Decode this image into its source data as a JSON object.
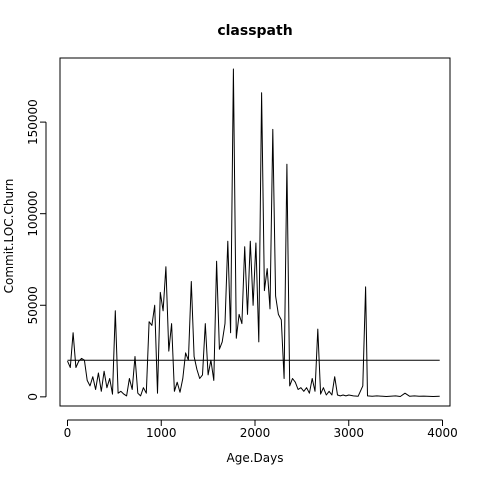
{
  "chart_data": {
    "type": "line",
    "title": "classpath",
    "xlabel": "Age.Days",
    "ylabel": "Commit.LOC.Churn",
    "xlim": [
      -80,
      4080
    ],
    "ylim": [
      -5000,
      185000
    ],
    "x_ticks": [
      0,
      1000,
      2000,
      3000,
      4000
    ],
    "x_tick_labels": [
      "0",
      "1000",
      "2000",
      "3000",
      "4000"
    ],
    "y_ticks": [
      0,
      50000,
      100000,
      150000
    ],
    "y_tick_labels": [
      "0",
      "50000",
      "100000",
      "150000"
    ],
    "grid": false,
    "series": [
      {
        "type": "line",
        "color": "#000000",
        "x": [
          0,
          30,
          60,
          90,
          120,
          150,
          180,
          210,
          240,
          270,
          300,
          330,
          360,
          390,
          420,
          450,
          480,
          510,
          540,
          570,
          600,
          630,
          660,
          690,
          720,
          750,
          780,
          810,
          840,
          870,
          900,
          930,
          960,
          990,
          1020,
          1050,
          1080,
          1110,
          1140,
          1170,
          1200,
          1230,
          1260,
          1290,
          1320,
          1350,
          1380,
          1410,
          1440,
          1470,
          1500,
          1530,
          1560,
          1590,
          1620,
          1650,
          1680,
          1710,
          1740,
          1770,
          1800,
          1830,
          1860,
          1890,
          1920,
          1950,
          1980,
          2010,
          2040,
          2070,
          2100,
          2130,
          2160,
          2190,
          2220,
          2250,
          2280,
          2310,
          2340,
          2370,
          2400,
          2430,
          2460,
          2490,
          2520,
          2550,
          2580,
          2610,
          2640,
          2670,
          2700,
          2730,
          2760,
          2790,
          2820,
          2850,
          2880,
          2910,
          2940,
          2970,
          3000,
          3050,
          3100,
          3150,
          3180,
          3200,
          3250,
          3300,
          3400,
          3500,
          3550,
          3600,
          3650,
          3700,
          3750,
          3800,
          3900,
          3970
        ],
        "y": [
          19500,
          16000,
          35000,
          16000,
          19500,
          21000,
          20000,
          9000,
          6000,
          11000,
          4000,
          13000,
          3000,
          14000,
          5000,
          10000,
          1500,
          47000,
          2000,
          3000,
          1500,
          500,
          10000,
          4000,
          22000,
          2000,
          500,
          5000,
          2000,
          41000,
          39000,
          50000,
          2000,
          57000,
          47000,
          71000,
          25000,
          40000,
          3000,
          8000,
          2500,
          10000,
          24000,
          20000,
          63000,
          22000,
          15000,
          10000,
          12000,
          40000,
          12000,
          20000,
          9000,
          74000,
          26000,
          30000,
          40000,
          85000,
          35000,
          179000,
          32000,
          45000,
          40000,
          82000,
          45000,
          85000,
          50000,
          84000,
          30000,
          166000,
          58000,
          70000,
          48000,
          146000,
          55000,
          45000,
          42000,
          10000,
          127000,
          6000,
          10000,
          8000,
          4000,
          5000,
          3000,
          5000,
          2000,
          10000,
          3000,
          37000,
          1500,
          5000,
          1000,
          3000,
          1000,
          11000,
          1000,
          500,
          1000,
          500,
          1000,
          500,
          300,
          6000,
          60000,
          500,
          300,
          500,
          200,
          500,
          200,
          2000,
          300,
          500,
          300,
          400,
          200,
          300
        ]
      },
      {
        "type": "line",
        "color": "#000000",
        "x": [
          0,
          3970
        ],
        "y": [
          20000,
          20000
        ]
      }
    ]
  }
}
